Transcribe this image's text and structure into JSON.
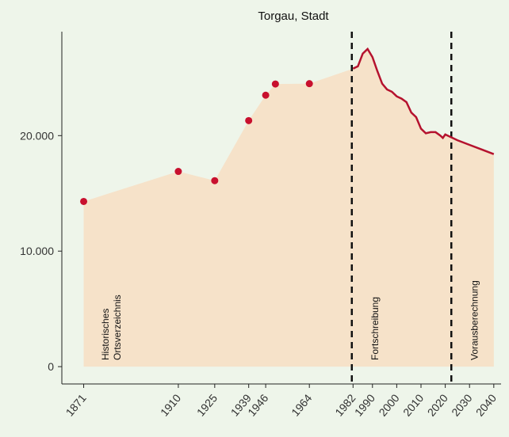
{
  "chart_data": {
    "type": "line",
    "title": "Torgau, Stadt",
    "series": [
      {
        "name": "Historisches Ortsverzeichnis",
        "color": "#c8102e",
        "x": [
          1871,
          1910,
          1925,
          1939,
          1946,
          1950,
          1964
        ],
        "values": [
          14300,
          16900,
          16100,
          21300,
          23500,
          24470,
          24500
        ]
      },
      {
        "name": "Fortschreibung / Vorausberechnung",
        "color": "#b5122e",
        "x": [
          1982,
          1984,
          1986,
          1988,
          1990,
          1992,
          1994,
          1996,
          1998,
          2000,
          2002,
          2004,
          2006,
          2008,
          2010,
          2012,
          2014,
          2016,
          2018,
          2019,
          2020,
          2022,
          2025,
          2030,
          2035,
          2040
        ],
        "values": [
          25800,
          26000,
          27100,
          27500,
          26800,
          25600,
          24500,
          24000,
          23800,
          23400,
          23200,
          22900,
          22000,
          21600,
          20600,
          20200,
          20300,
          20300,
          20000,
          19800,
          20100,
          19900,
          19600,
          19200,
          18800,
          18400
        ]
      }
    ],
    "area_color": "#f6e2c9",
    "xlim": [
      1862,
      2043
    ],
    "ylim": [
      -1500,
      29000
    ],
    "xticks": [
      1871,
      1910,
      1925,
      1939,
      1946,
      1964,
      1982,
      1990,
      2000,
      2010,
      2020,
      2030,
      2040
    ],
    "yticks": [
      0,
      {
        "value": 10000,
        "label": "10.000"
      },
      {
        "value": 20000,
        "label": "20.000"
      }
    ],
    "vlines": [
      1981.5,
      2022.5
    ],
    "annotations": [
      [
        "Historisches",
        "Ortsverzeichnis"
      ],
      [
        "Fortschreibung"
      ],
      [
        "Vorausberechnung"
      ]
    ]
  }
}
